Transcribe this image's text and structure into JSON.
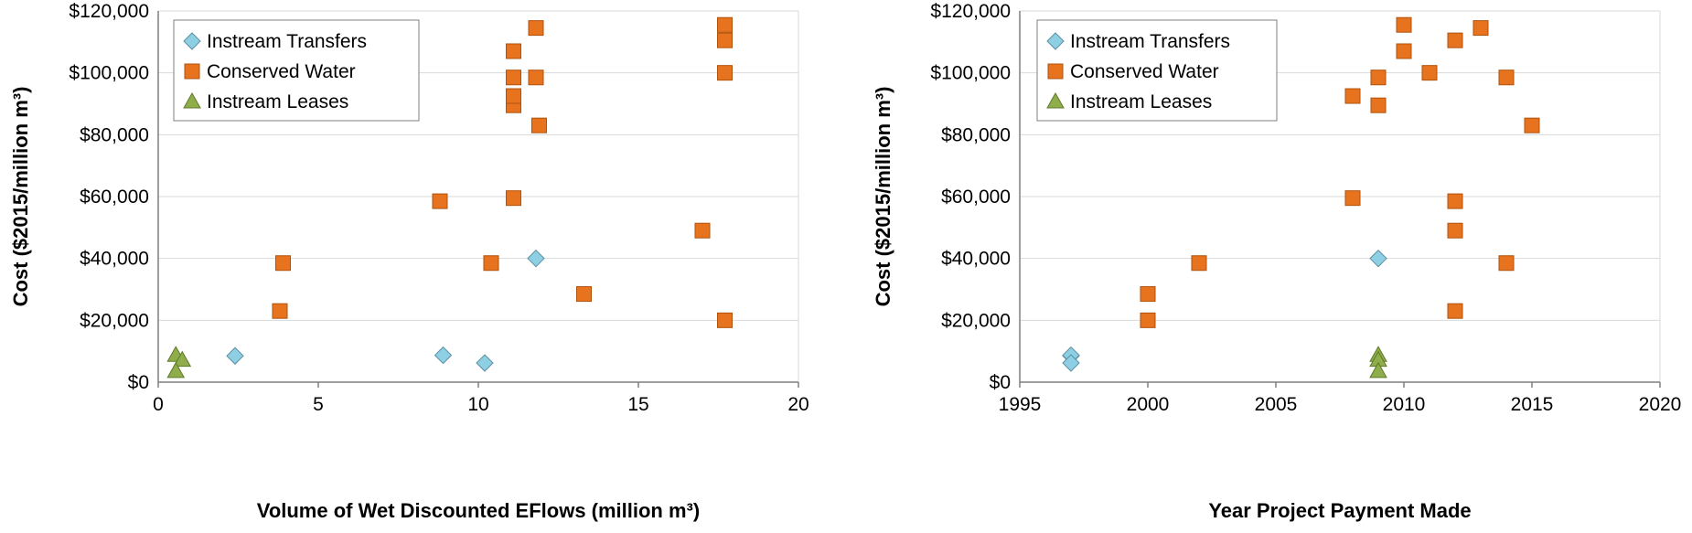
{
  "chart_data": [
    {
      "type": "scatter",
      "xlabel": "Volume of Wet Discounted EFlows (million m³)",
      "ylabel": "Cost ($2015/million m³)",
      "xlim": [
        0,
        20
      ],
      "ylim": [
        0,
        120000
      ],
      "xticks": [
        "0",
        "5",
        "10",
        "15",
        "20"
      ],
      "yticks": [
        "$0",
        "$20,000",
        "$40,000",
        "$60,000",
        "$80,000",
        "$100,000",
        "$120,000"
      ],
      "grid": "horizontal",
      "legend_position": "top-left",
      "series": [
        {
          "name": "Instream Transfers",
          "marker": "diamond",
          "color": "#8ecfe3",
          "x": [
            2.4,
            8.9,
            10.2,
            11.8
          ],
          "y": [
            8500,
            8700,
            6200,
            40000
          ]
        },
        {
          "name": "Conserved Water",
          "marker": "square",
          "color": "#e8731f",
          "x": [
            3.8,
            3.9,
            8.8,
            10.4,
            11.1,
            11.1,
            11.1,
            11.1,
            11.1,
            11.8,
            11.8,
            11.9,
            13.3,
            17.0,
            17.7,
            17.7,
            17.7,
            17.7
          ],
          "y": [
            23000,
            38500,
            58500,
            38500,
            59500,
            89500,
            92500,
            98500,
            107000,
            114500,
            98500,
            83000,
            28500,
            49000,
            115500,
            110500,
            100000,
            20000
          ]
        },
        {
          "name": "Instream Leases",
          "marker": "triangle",
          "color": "#8fad4b",
          "x": [
            0.55,
            0.75,
            0.55
          ],
          "y": [
            8800,
            7200,
            3600
          ]
        }
      ]
    },
    {
      "type": "scatter",
      "xlabel": "Year Project Payment Made",
      "ylabel": "Cost ($2015/million m³)",
      "xlim": [
        1995,
        2020
      ],
      "ylim": [
        0,
        120000
      ],
      "xticks": [
        "1995",
        "2000",
        "2005",
        "2010",
        "2015",
        "2020"
      ],
      "yticks": [
        "$0",
        "$20,000",
        "$40,000",
        "$60,000",
        "$80,000",
        "$100,000",
        "$120,000"
      ],
      "grid": "horizontal",
      "legend_position": "top-left",
      "series": [
        {
          "name": "Instream Transfers",
          "marker": "diamond",
          "color": "#8ecfe3",
          "x": [
            1997,
            1997,
            1997,
            2009
          ],
          "y": [
            8500,
            8700,
            6200,
            40000
          ]
        },
        {
          "name": "Conserved Water",
          "marker": "square",
          "color": "#e8731f",
          "x": [
            2000,
            2000,
            2002,
            2008,
            2008,
            2009,
            2009,
            2010,
            2010,
            2011,
            2012,
            2012,
            2012,
            2012,
            2013,
            2014,
            2014,
            2015
          ],
          "y": [
            28500,
            20000,
            38500,
            92500,
            59500,
            98500,
            89500,
            115500,
            107000,
            100000,
            110500,
            58500,
            49000,
            23000,
            114500,
            98500,
            38500,
            83000
          ]
        },
        {
          "name": "Instream Leases",
          "marker": "triangle",
          "color": "#8fad4b",
          "x": [
            2009,
            2009,
            2009
          ],
          "y": [
            8800,
            7200,
            3600
          ]
        }
      ]
    }
  ]
}
